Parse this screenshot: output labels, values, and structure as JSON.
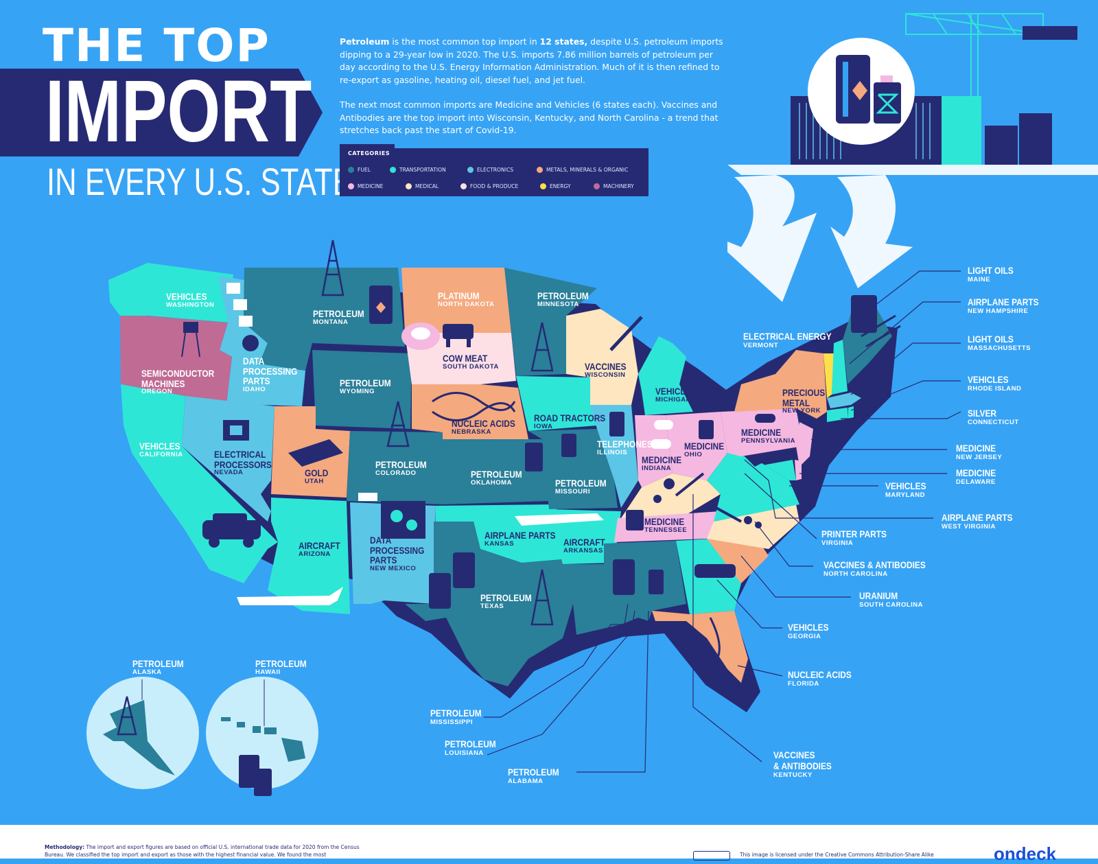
{
  "title": {
    "line1": "THE TOP",
    "line2": "IMPORT",
    "line3": "IN EVERY U.S. STATE"
  },
  "intro": {
    "p1_bold1": "Petroleum",
    "p1_text1": " is the most common top import in ",
    "p1_bold2": "12 states,",
    "p1_text2": " despite U.S. petroleum imports dipping to a 29-year low in 2020. The U.S. imports 7.86 million barrels of petroleum per day according to the U.S. Energy Information Administration. Much of it is then refined to re-export as gasoline, heating oil, diesel fuel, and jet fuel.",
    "p2": "The next most common imports are Medicine and Vehicles (6 states each). Vaccines and Antibodies are the top import into Wisconsin, Kentucky, and North Carolina - a trend that stretches back past the start of Covid-19."
  },
  "legend": {
    "title": "CATEGORIES",
    "items": [
      {
        "label": "FUEL",
        "color": "#2a7f99"
      },
      {
        "label": "TRANSPORTATION",
        "color": "#2ee6d6"
      },
      {
        "label": "ELECTRONICS",
        "color": "#5cc6e6"
      },
      {
        "label": "METALS, MINERALS & ORGANIC",
        "color": "#f5a97f"
      },
      {
        "label": "MEDICINE",
        "color": "#f5b8e0"
      },
      {
        "label": "MEDICAL",
        "color": "#fde6c0"
      },
      {
        "label": "FOOD & PRODUCE",
        "color": "#fde0e6"
      },
      {
        "label": "ENERGY",
        "color": "#fde047"
      },
      {
        "label": "MACHINERY",
        "color": "#c06b94"
      }
    ]
  },
  "states": {
    "WA": {
      "name": "VEHICLES",
      "state": "WASHINGTON"
    },
    "OR": {
      "name1": "SEMICONDUCTOR",
      "name2": "MACHINES",
      "state": "OREGON"
    },
    "ID": {
      "name1": "DATA",
      "name2": "PROCESSING",
      "name3": "PARTS",
      "state": "IDAHO"
    },
    "MT": {
      "name": "PETROLEUM",
      "state": "MONTANA"
    },
    "ND": {
      "name": "PLATINUM",
      "state": "NORTH DAKOTA"
    },
    "MN": {
      "name": "PETROLEUM",
      "state": "MINNESOTA"
    },
    "WI": {
      "name": "VACCINES",
      "state": "WISCONSIN"
    },
    "SD": {
      "name": "COW MEAT",
      "state": "SOUTH DAKOTA"
    },
    "WY": {
      "name": "PETROLEUM",
      "state": "WYOMING"
    },
    "CA": {
      "name": "VEHICLES",
      "state": "CALIFORNIA"
    },
    "NV": {
      "name1": "ELECTRICAL",
      "name2": "PROCESSORS",
      "state": "NEVADA"
    },
    "UT": {
      "name": "GOLD",
      "state": "UTAH"
    },
    "CO": {
      "name": "PETROLEUM",
      "state": "COLORADO"
    },
    "NE": {
      "name": "NUCLEIC ACIDS",
      "state": "NEBRASKA"
    },
    "IA": {
      "name": "ROAD TRACTORS",
      "state": "IOWA"
    },
    "IL": {
      "name": "TELEPHONES",
      "state": "ILLINOIS"
    },
    "MI": {
      "name": "VEHICLES",
      "state": "MICHIGAN"
    },
    "IN": {
      "name": "MEDICINE",
      "state": "INDIANA"
    },
    "OH": {
      "name": "MEDICINE",
      "state": "OHIO"
    },
    "PA": {
      "name": "MEDICINE",
      "state": "PENNSYLVANIA"
    },
    "NY": {
      "name1": "PRECIOUS",
      "name2": "METAL",
      "state": "NEW YORK"
    },
    "AZ": {
      "name": "AIRCRAFT",
      "state": "ARIZONA"
    },
    "NM": {
      "name1": "DATA",
      "name2": "PROCESSING",
      "name3": "PARTS",
      "state": "NEW MEXICO"
    },
    "OK": {
      "name": "PETROLEUM",
      "state": "OKLAHOMA"
    },
    "MO": {
      "name": "PETROLEUM",
      "state": "MISSOURI"
    },
    "KS": {
      "name": "AIRPLANE PARTS",
      "state": "KANSAS"
    },
    "AR": {
      "name": "AIRCRAFT",
      "state": "ARKANSAS"
    },
    "TN": {
      "name": "MEDICINE",
      "state": "TENNESSEE"
    },
    "TX": {
      "name": "PETROLEUM",
      "state": "TEXAS"
    },
    "AK": {
      "name": "PETROLEUM",
      "state": "ALASKA"
    },
    "HI": {
      "name": "PETROLEUM",
      "state": "HAWAII"
    }
  },
  "callouts": {
    "ME": {
      "name": "LIGHT OILS",
      "state": "MAINE"
    },
    "NH": {
      "name": "AIRPLANE PARTS",
      "state": "NEW HAMPSHIRE"
    },
    "MA": {
      "name": "LIGHT OILS",
      "state": "MASSACHUSETTS"
    },
    "RI": {
      "name": "VEHICLES",
      "state": "RHODE ISLAND"
    },
    "CT": {
      "name": "SILVER",
      "state": "CONNECTICUT"
    },
    "NJ": {
      "name": "MEDICINE",
      "state": "NEW JERSEY"
    },
    "DE": {
      "name": "MEDICINE",
      "state": "DELAWARE"
    },
    "VT": {
      "name": "ELECTRICAL ENERGY",
      "state": "VERMONT"
    },
    "MD": {
      "name": "VEHICLES",
      "state": "MARYLAND"
    },
    "WV": {
      "name": "AIRPLANE PARTS",
      "state": "WEST VIRGINIA"
    },
    "VA": {
      "name": "PRINTER PARTS",
      "state": "VIRGINIA"
    },
    "NC": {
      "name": "VACCINES & ANTIBODIES",
      "state": "NORTH CAROLINA"
    },
    "SC": {
      "name": "URANIUM",
      "state": "SOUTH CAROLINA"
    },
    "GA": {
      "name": "VEHICLES",
      "state": "GEORGIA"
    },
    "FL": {
      "name": "NUCLEIC ACIDS",
      "state": "FLORIDA"
    },
    "KY": {
      "name1": "VACCINES",
      "name2": "& ANTIBODIES",
      "state": "KENTUCKY"
    },
    "MS": {
      "name": "PETROLEUM",
      "state": "MISSISSIPPI"
    },
    "LA": {
      "name": "PETROLEUM",
      "state": "LOUISIANA"
    },
    "AL": {
      "name": "PETROLEUM",
      "state": "ALABAMA"
    }
  },
  "footer": {
    "methodology_bold": "Methodology:",
    "methodology_text": " The import and export figures are based on official U.S. international trade data for 2020 from the Census Bureau. We classified the top import and export as those with the highest financial value. We found the most",
    "license": "This image is licensed under the Creative Commons Attribution-Share Alike",
    "brand": "ondeck"
  },
  "colors": {
    "ocean": "#37a3f5",
    "navy": "#262a73",
    "fuel": "#2a7f99",
    "transport": "#2ee6d6",
    "electronics": "#5cc6e6",
    "metals": "#f5a97f",
    "medicine": "#f5b8e0",
    "medical": "#fde6c0",
    "food": "#fde0e6",
    "energy": "#fde047",
    "machinery": "#c06b94"
  }
}
